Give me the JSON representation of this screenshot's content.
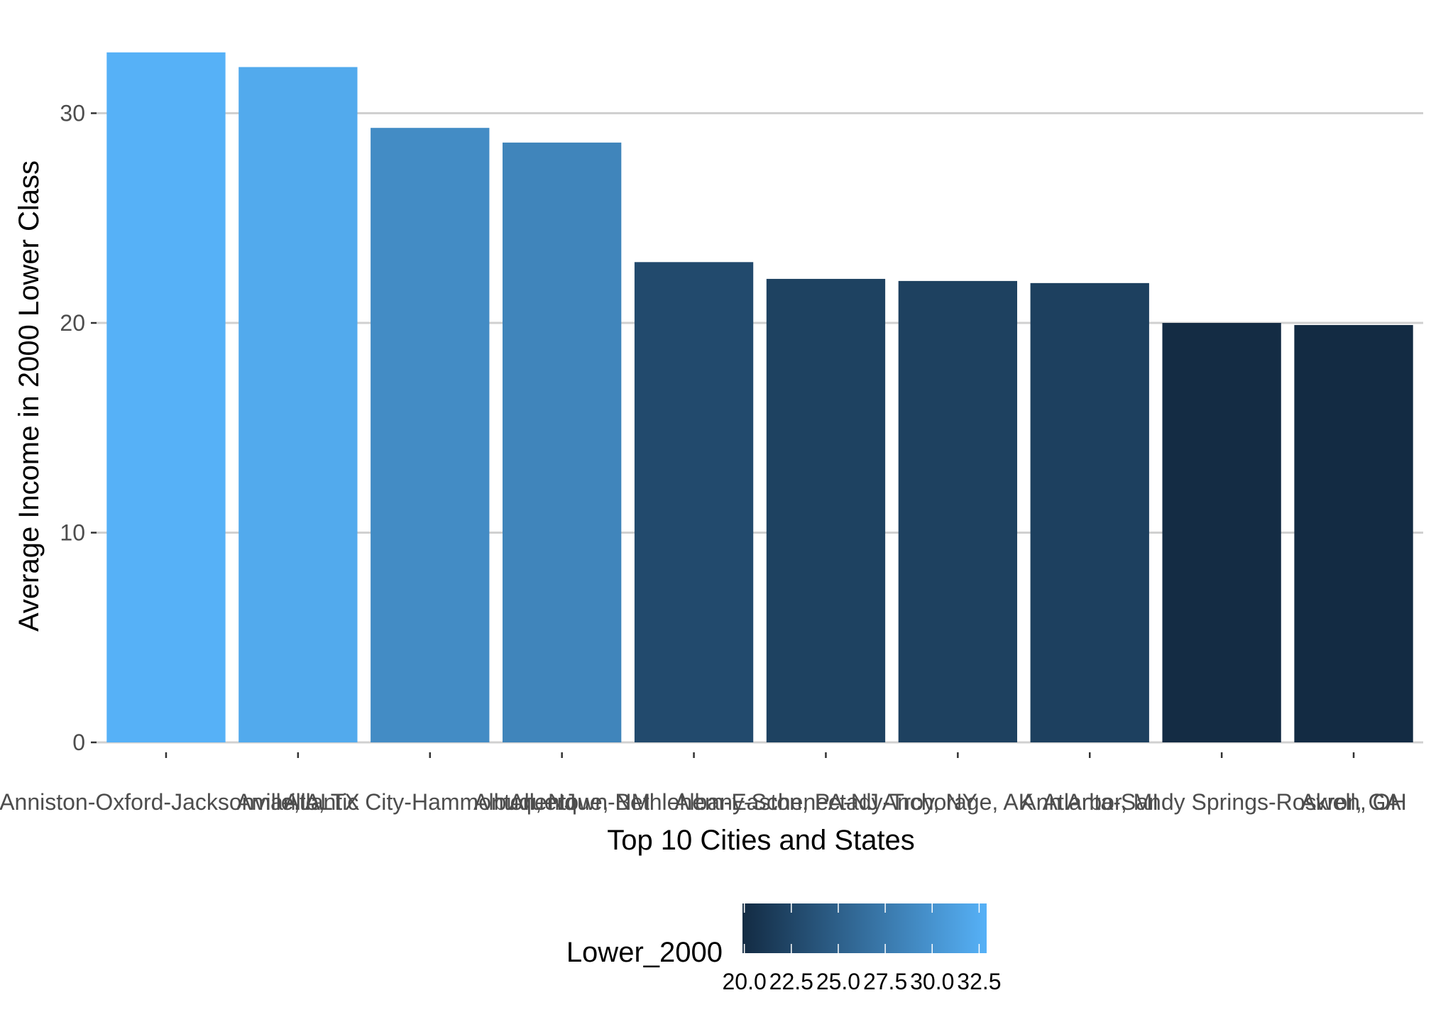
{
  "chart_data": {
    "type": "bar",
    "title": "",
    "xlabel": "Top 10 Cities and States",
    "ylabel": "Average Income in 2000 Lower Class",
    "categories": [
      "Anniston-Oxford-Jacksonville, AL",
      "Amarillo, TX",
      "Atlantic City-Hammonton, NJ",
      "Albuquerque, NM",
      "Allentown-Bethlehem-Easton, PA-NJ",
      "Albany-Schenectady-Troy, NY",
      "Anchorage, AK",
      "Ann Arbor, MI",
      "Atlanta-Sandy Springs-Roswell, GA",
      "Akron, OH"
    ],
    "values": [
      32.9,
      32.2,
      29.3,
      28.6,
      22.9,
      22.1,
      22.0,
      21.9,
      20.0,
      19.9
    ],
    "ylim": [
      0,
      33.0
    ],
    "yticks": [
      "0",
      "10",
      "20",
      "30"
    ],
    "ytick_values": [
      0,
      10,
      20,
      30
    ],
    "grid": "horizontal",
    "legend": {
      "title": "Lower_2000",
      "placement": "bottom",
      "range": [
        19.9,
        32.9
      ],
      "labels": [
        "20.0",
        "22.5",
        "25.0",
        "27.5",
        "30.0",
        "32.5"
      ],
      "label_values": [
        20.0,
        22.5,
        25.0,
        27.5,
        30.0,
        32.5
      ],
      "low_color": "#132B43",
      "high_color": "#56B1F7"
    }
  }
}
